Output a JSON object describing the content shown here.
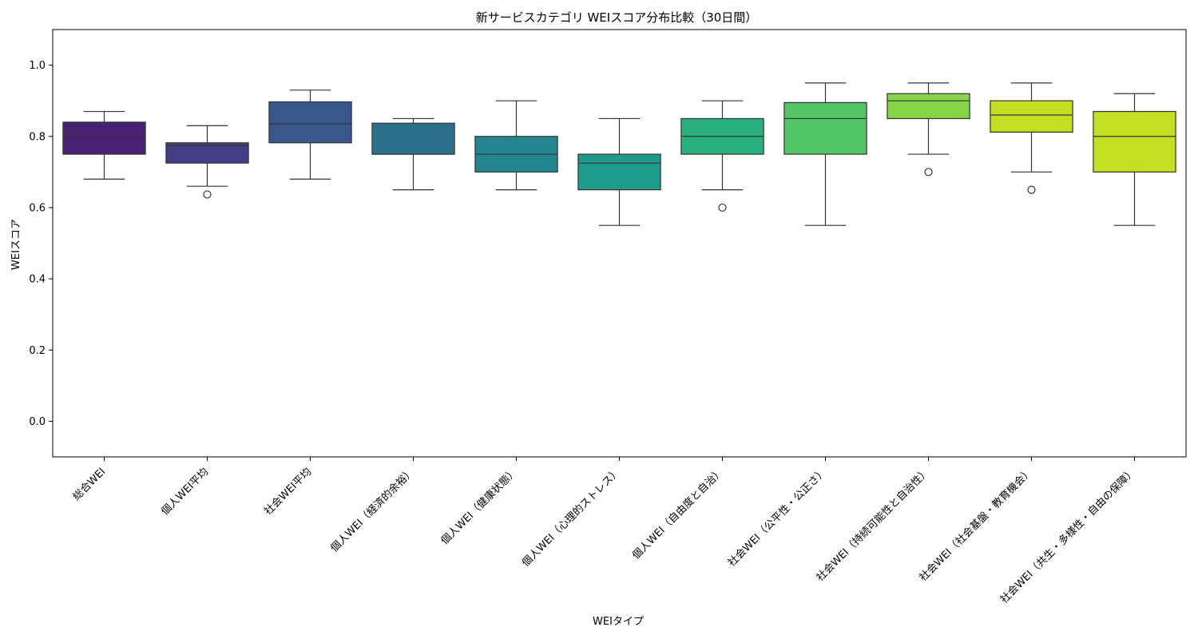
{
  "chart_data": {
    "type": "boxplot",
    "title": "新サービスカテゴリ WEIスコア分布比較（30日間）",
    "xlabel": "WEIタイプ",
    "ylabel": "WEIスコア",
    "ylim": [
      -0.1,
      1.1
    ],
    "yticks": [
      0.0,
      0.2,
      0.4,
      0.6,
      0.8,
      1.0
    ],
    "ytick_labels": [
      "0.0",
      "0.2",
      "0.4",
      "0.6",
      "0.8",
      "1.0"
    ],
    "grid": false,
    "categories": [
      "総合WEI",
      "個人WEI平均",
      "社会WEI平均",
      "個人WEI（経済的余裕）",
      "個人WEI（健康状態）",
      "個人WEI（心理的ストレス）",
      "個人WEI（自由度と自治）",
      "社会WEI（公平性・公正さ）",
      "社会WEI（持続可能性と自治性）",
      "社会WEI（社会基盤・教育機会）",
      "社会WEI（共生・多様性・自由の保障）"
    ],
    "colors": [
      "#482173",
      "#433e85",
      "#38588c",
      "#2d708e",
      "#25858e",
      "#1e9b8a",
      "#2ab07f",
      "#52c569",
      "#86d549",
      "#c2df23",
      "#c2df23"
    ],
    "boxes": [
      {
        "whisker_low": 0.68,
        "q1": 0.75,
        "median": 0.805,
        "q3": 0.84,
        "whisker_high": 0.87,
        "outliers": []
      },
      {
        "whisker_low": 0.66,
        "q1": 0.725,
        "median": 0.775,
        "q3": 0.782,
        "whisker_high": 0.83,
        "outliers": [
          0.637
        ]
      },
      {
        "whisker_low": 0.68,
        "q1": 0.782,
        "median": 0.835,
        "q3": 0.897,
        "whisker_high": 0.93,
        "outliers": []
      },
      {
        "whisker_low": 0.65,
        "q1": 0.75,
        "median": 0.75,
        "q3": 0.837,
        "whisker_high": 0.85,
        "outliers": []
      },
      {
        "whisker_low": 0.65,
        "q1": 0.7,
        "median": 0.75,
        "q3": 0.8,
        "whisker_high": 0.9,
        "outliers": []
      },
      {
        "whisker_low": 0.55,
        "q1": 0.65,
        "median": 0.725,
        "q3": 0.75,
        "whisker_high": 0.85,
        "outliers": []
      },
      {
        "whisker_low": 0.65,
        "q1": 0.75,
        "median": 0.8,
        "q3": 0.85,
        "whisker_high": 0.9,
        "outliers": [
          0.6
        ]
      },
      {
        "whisker_low": 0.55,
        "q1": 0.75,
        "median": 0.85,
        "q3": 0.895,
        "whisker_high": 0.95,
        "outliers": []
      },
      {
        "whisker_low": 0.75,
        "q1": 0.85,
        "median": 0.9,
        "q3": 0.92,
        "whisker_high": 0.95,
        "outliers": [
          0.7
        ]
      },
      {
        "whisker_low": 0.7,
        "q1": 0.812,
        "median": 0.86,
        "q3": 0.9,
        "whisker_high": 0.95,
        "outliers": [
          0.65
        ]
      },
      {
        "whisker_low": 0.55,
        "q1": 0.7,
        "median": 0.8,
        "q3": 0.87,
        "whisker_high": 0.92,
        "outliers": []
      }
    ]
  }
}
